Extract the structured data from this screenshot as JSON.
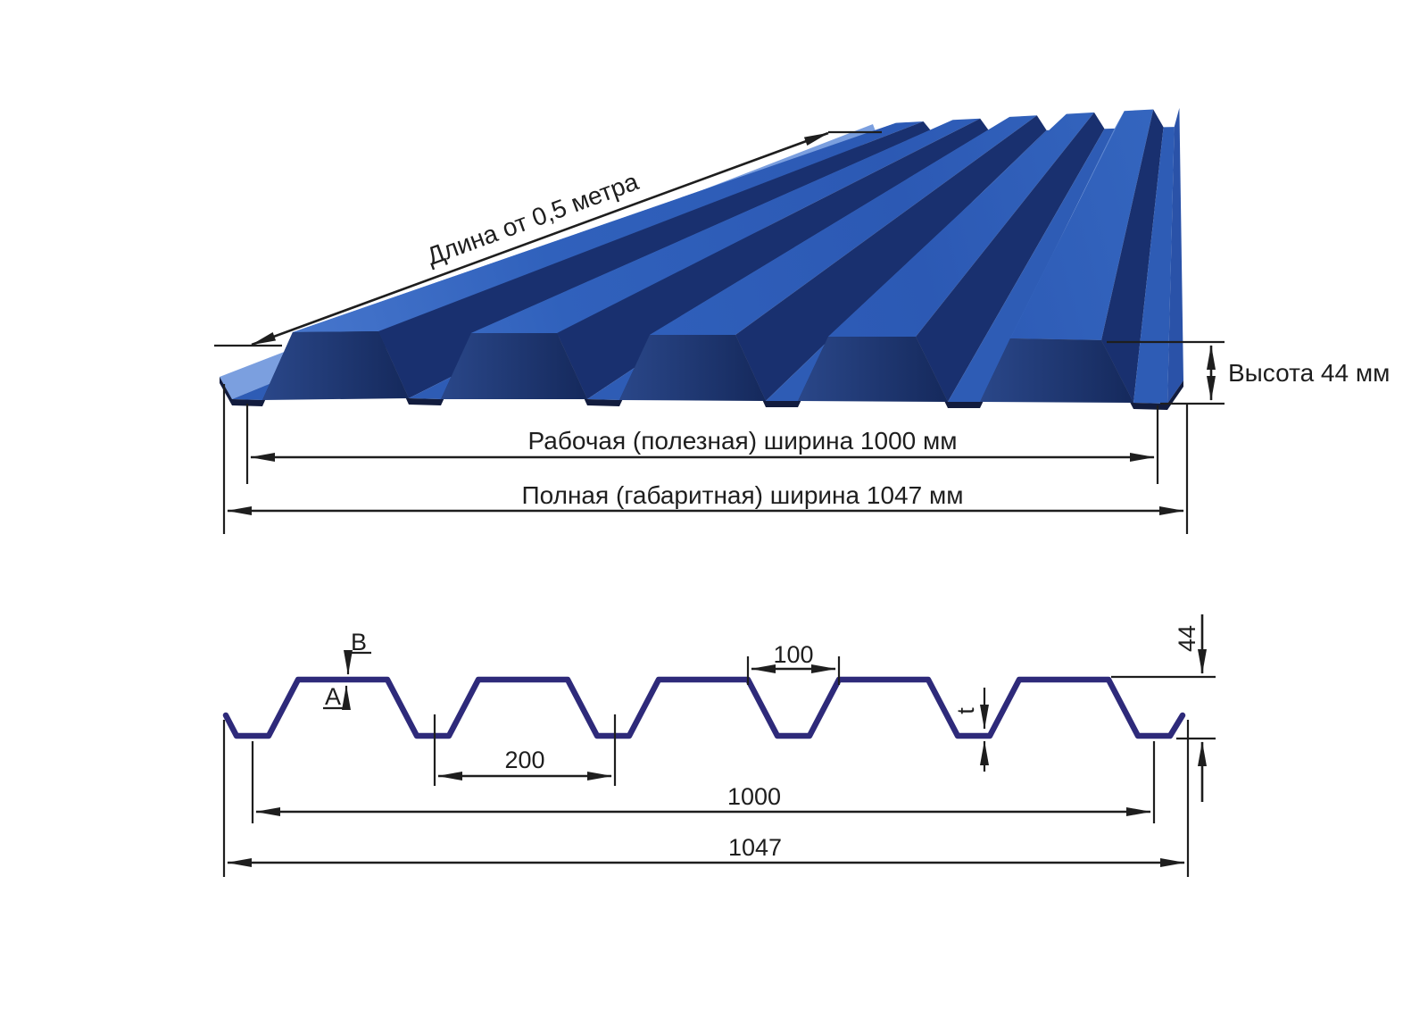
{
  "figure_top": {
    "length_label": "Длина от 0,5 метра",
    "height_label": "Высота 44 мм",
    "working_width_label": "Рабочая (полезная) ширина 1000 мм",
    "overall_width_label": "Полная (габаритная) ширина 1047 мм"
  },
  "figure_profile": {
    "label_b": "B",
    "label_a": "A",
    "label_t": "t",
    "dim_top_opening": "100",
    "dim_pitch": "200",
    "dim_height": "44",
    "dim_working_width": "1000",
    "dim_overall_width": "1047"
  },
  "specs": {
    "profile_height_mm": 44,
    "working_width_mm": 1000,
    "overall_width_mm": 1047,
    "rib_pitch_mm": 200,
    "rib_top_opening_mm": 100,
    "min_length_m": 0.5
  },
  "colors": {
    "sheet_flange": "#3163be",
    "sheet_lit_web": "#4a7ace",
    "sheet_dark_web": "#19306f",
    "sheet_valley": "#2e5cb5",
    "sheet_left_lip": "#7b9fdf",
    "sheet_right_lip": "#2a52a8",
    "front_cut_dark": "#15295c",
    "profile_line": "#2e2a7a",
    "dim_line": "#1e1e1e"
  }
}
